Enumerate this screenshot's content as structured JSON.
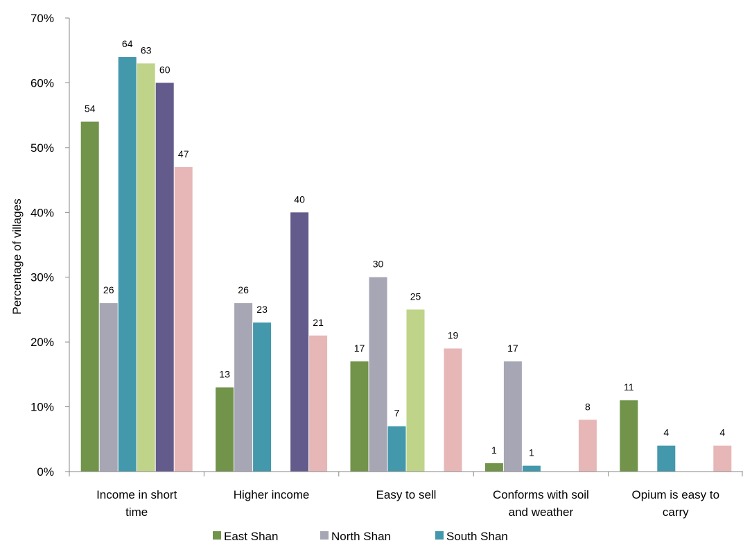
{
  "chart_data": {
    "type": "bar",
    "ylabel": "Percentage of villages",
    "xlabel": "",
    "ylim": [
      0,
      70
    ],
    "y_ticks": [
      0,
      10,
      20,
      30,
      40,
      50,
      60,
      70
    ],
    "y_tick_labels": [
      "0%",
      "10%",
      "20%",
      "30%",
      "40%",
      "50%",
      "60%",
      "70%"
    ],
    "categories": [
      [
        "Income in short",
        "time"
      ],
      [
        "Higher income"
      ],
      [
        "Easy to sell"
      ],
      [
        "Conforms with soil",
        "and weather"
      ],
      [
        "Opium is easy to",
        "carry"
      ]
    ],
    "series": [
      {
        "name": "East Shan",
        "color": "#71934a",
        "values": [
          54,
          13,
          17,
          1.3,
          11
        ],
        "labels": [
          "54",
          "13",
          "17",
          "1",
          "11"
        ]
      },
      {
        "name": "North Shan",
        "color": "#a6a6b5",
        "values": [
          26,
          26,
          30,
          17,
          null
        ],
        "labels": [
          "26",
          "26",
          "30",
          "17",
          ""
        ]
      },
      {
        "name": "South Shan",
        "color": "#4398ab",
        "values": [
          64,
          23,
          7,
          0.9,
          4
        ],
        "labels": [
          "64",
          "23",
          "7",
          "1",
          "4"
        ]
      },
      {
        "color": "#bfd488",
        "values": [
          63,
          null,
          25,
          null,
          null
        ],
        "labels": [
          "63",
          "",
          "25",
          "",
          ""
        ]
      },
      {
        "color": "#625b8b",
        "values": [
          60,
          40,
          null,
          null,
          null
        ],
        "labels": [
          "60",
          "40",
          "",
          "",
          ""
        ]
      },
      {
        "color": "#e6b7b6",
        "values": [
          47,
          21,
          19,
          8,
          4
        ],
        "labels": [
          "47",
          "21",
          "19",
          "8",
          "4"
        ]
      }
    ],
    "legend_position": "bottom",
    "legend_entries": [
      "East Shan",
      "North Shan",
      "South Shan"
    ],
    "grid": false
  }
}
